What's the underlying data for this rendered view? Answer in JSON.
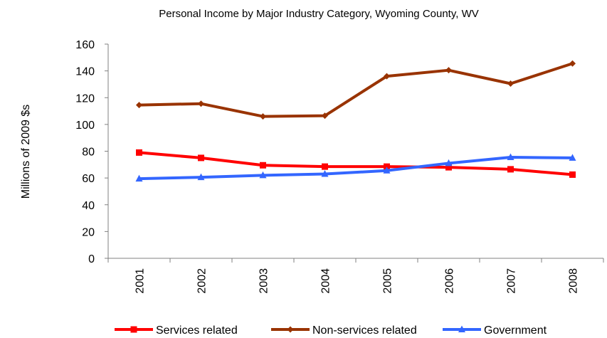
{
  "chart_data": {
    "type": "line",
    "title": "Personal Income by Major Industry Category, Wyoming County, WV",
    "xlabel": "",
    "ylabel": "Millions of 2009 $s",
    "categories": [
      "2001",
      "2002",
      "2003",
      "2004",
      "2005",
      "2006",
      "2007",
      "2008"
    ],
    "ylim": [
      0,
      160
    ],
    "yticks": [
      0,
      20,
      40,
      60,
      80,
      100,
      120,
      140,
      160
    ],
    "grid": false,
    "legend_position": "bottom",
    "series": [
      {
        "name": "Services related",
        "color": "#ff0000",
        "marker": "square",
        "values": [
          79,
          75,
          69.5,
          68.5,
          68.5,
          68,
          66.5,
          62.5
        ]
      },
      {
        "name": "Non-services related",
        "color": "#993300",
        "marker": "diamond",
        "values": [
          114.5,
          115.5,
          106,
          106.5,
          136,
          140.5,
          130.5,
          145.5
        ]
      },
      {
        "name": "Government",
        "color": "#3366ff",
        "marker": "triangle",
        "values": [
          59.5,
          60.5,
          62,
          63,
          65.5,
          71,
          75.5,
          75
        ]
      }
    ]
  }
}
